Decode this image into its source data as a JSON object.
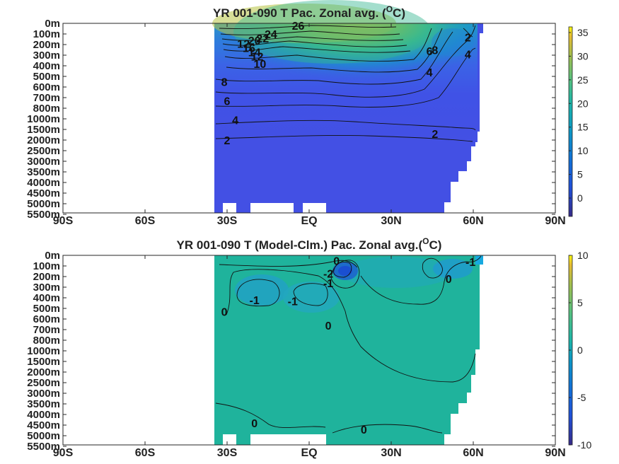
{
  "chart_data": [
    {
      "type": "heatmap",
      "title": "YR 001-090 T Pac. Zonal avg. (",
      "title_unit_sup": "O",
      "title_unit_tail": "C)",
      "y_ticks": [
        "0m",
        "100m",
        "200m",
        "300m",
        "400m",
        "500m",
        "600m",
        "700m",
        "800m",
        "1000m",
        "1500m",
        "2000m",
        "2500m",
        "3000m",
        "3500m",
        "4000m",
        "4500m",
        "5000m",
        "5500m"
      ],
      "x_ticks": [
        "90S",
        "60S",
        "30S",
        "EQ",
        "30N",
        "60N",
        "90N"
      ],
      "xlim": [
        -90,
        90
      ],
      "colorbar": {
        "ticks": [
          "35",
          "30",
          "25",
          "20",
          "15",
          "10",
          "5",
          "0"
        ],
        "range": [
          -3,
          36
        ]
      },
      "contour_labels": [
        {
          "text": "26",
          "lat": -4,
          "depth": 0.2
        },
        {
          "text": "24",
          "lat": -14,
          "depth": 1.0
        },
        {
          "text": "22",
          "lat": -17,
          "depth": 1.4
        },
        {
          "text": "20",
          "lat": -20,
          "depth": 1.6
        },
        {
          "text": "12",
          "lat": -24,
          "depth": 1.9
        },
        {
          "text": "16",
          "lat": -22,
          "depth": 2.3
        },
        {
          "text": "14",
          "lat": -20,
          "depth": 2.7
        },
        {
          "text": "12",
          "lat": -19,
          "depth": 3.1
        },
        {
          "text": "10",
          "lat": -18,
          "depth": 3.8
        },
        {
          "text": "8",
          "lat": -31,
          "depth": 5.5
        },
        {
          "text": "6",
          "lat": -30,
          "depth": 7.3
        },
        {
          "text": "4",
          "lat": -27,
          "depth": 9.1
        },
        {
          "text": "2",
          "lat": -30,
          "depth": 11.0
        },
        {
          "text": "2",
          "lat": 58,
          "depth": 1.3
        },
        {
          "text": "4",
          "lat": 58,
          "depth": 2.9
        },
        {
          "text": "6",
          "lat": 44,
          "depth": 2.6
        },
        {
          "text": "8",
          "lat": 46,
          "depth": 2.5
        },
        {
          "text": "4",
          "lat": 44,
          "depth": 4.6
        },
        {
          "text": "2",
          "lat": 46,
          "depth": 10.4
        }
      ]
    },
    {
      "type": "heatmap",
      "title": "YR 001-090 T (Model-Clm.) Pac. Zonal avg.(",
      "title_unit_sup": "O",
      "title_unit_tail": "C)",
      "y_ticks": [
        "0m",
        "100m",
        "200m",
        "300m",
        "400m",
        "500m",
        "600m",
        "700m",
        "800m",
        "1000m",
        "1500m",
        "2000m",
        "2500m",
        "3000m",
        "3500m",
        "4000m",
        "4500m",
        "5000m",
        "5500m"
      ],
      "x_ticks": [
        "90S",
        "60S",
        "30S",
        "EQ",
        "30N",
        "60N",
        "90N"
      ],
      "xlim": [
        -90,
        90
      ],
      "colorbar": {
        "ticks": [
          "10",
          "5",
          "0",
          "-5",
          "-10"
        ],
        "range": [
          -10,
          10
        ]
      },
      "contour_labels": [
        {
          "text": "0",
          "lat": 10,
          "depth": 0.5
        },
        {
          "text": "-2",
          "lat": 7,
          "depth": 1.7
        },
        {
          "text": "-1",
          "lat": 7,
          "depth": 2.6
        },
        {
          "text": "-1",
          "lat": 59,
          "depth": 0.6
        },
        {
          "text": "0",
          "lat": 51,
          "depth": 2.2
        },
        {
          "text": "-1",
          "lat": -20,
          "depth": 4.2
        },
        {
          "text": "-1",
          "lat": -6,
          "depth": 4.3
        },
        {
          "text": "0",
          "lat": -31,
          "depth": 5.3
        },
        {
          "text": "0",
          "lat": 7,
          "depth": 6.6
        },
        {
          "text": "0",
          "lat": -20,
          "depth": 15.8
        },
        {
          "text": "0",
          "lat": 20,
          "depth": 16.4
        }
      ]
    }
  ]
}
